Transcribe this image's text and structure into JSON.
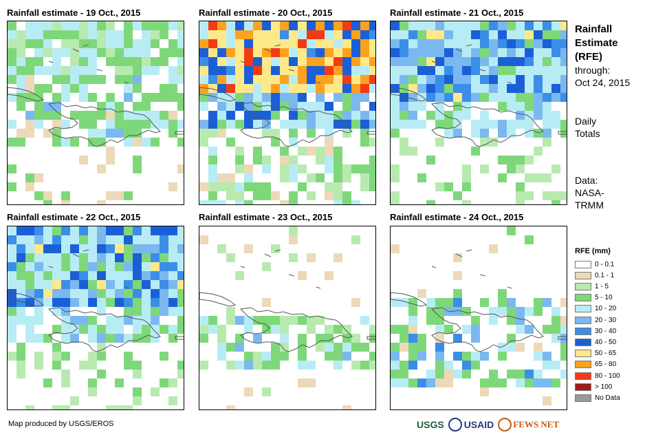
{
  "panels": [
    {
      "title": "Rainfall estimate - 19 Oct., 2015",
      "date": "19 Oct., 2015",
      "intensity": "light"
    },
    {
      "title": "Rainfall estimate - 20 Oct., 2015",
      "date": "20 Oct., 2015",
      "intensity": "heavy"
    },
    {
      "title": "Rainfall estimate - 21 Oct., 2015",
      "date": "21 Oct., 2015",
      "intensity": "moderate"
    },
    {
      "title": "Rainfall estimate - 22 Oct., 2015",
      "date": "22 Oct., 2015",
      "intensity": "moderate"
    },
    {
      "title": "Rainfall estimate - 23 Oct., 2015",
      "date": "23 Oct., 2015",
      "intensity": "sparse"
    },
    {
      "title": "Rainfall estimate - 24 Oct., 2015",
      "date": "24 Oct., 2015",
      "intensity": "sparse-south"
    }
  ],
  "side": {
    "title_line1": "Rainfall",
    "title_line2": "Estimate",
    "title_line3": "(RFE)",
    "through_label": "through:",
    "through_date": "Oct 24, 2015",
    "daily_line1": "Daily",
    "daily_line2": "Totals",
    "data_line1": "Data:",
    "data_line2": "NASA-",
    "data_line3": "TRMM"
  },
  "legend": {
    "title": "RFE (mm)",
    "items": [
      {
        "label": "0 - 0.1",
        "color": "#ffffff"
      },
      {
        "label": "0.1 - 1",
        "color": "#ecd9b8"
      },
      {
        "label": "1 - 5",
        "color": "#b8eab0"
      },
      {
        "label": "5 - 10",
        "color": "#7ed87a"
      },
      {
        "label": "10 - 20",
        "color": "#b8ecf5"
      },
      {
        "label": "20 - 30",
        "color": "#7bb8f0"
      },
      {
        "label": "30 - 40",
        "color": "#3a8ee8"
      },
      {
        "label": "40 - 50",
        "color": "#1b5fd6"
      },
      {
        "label": "50 - 65",
        "color": "#fde98a"
      },
      {
        "label": "65 - 80",
        "color": "#fba21e"
      },
      {
        "label": "80 - 100",
        "color": "#f33b12"
      },
      {
        "label": "> 100",
        "color": "#a11a1a"
      },
      {
        "label": "No Data",
        "color": "#9a9a9a"
      }
    ]
  },
  "credit": "Map produced by USGS/EROS",
  "logos": {
    "usgs": "USGS",
    "usaid": "USAID",
    "fews": "FEWS NET"
  }
}
